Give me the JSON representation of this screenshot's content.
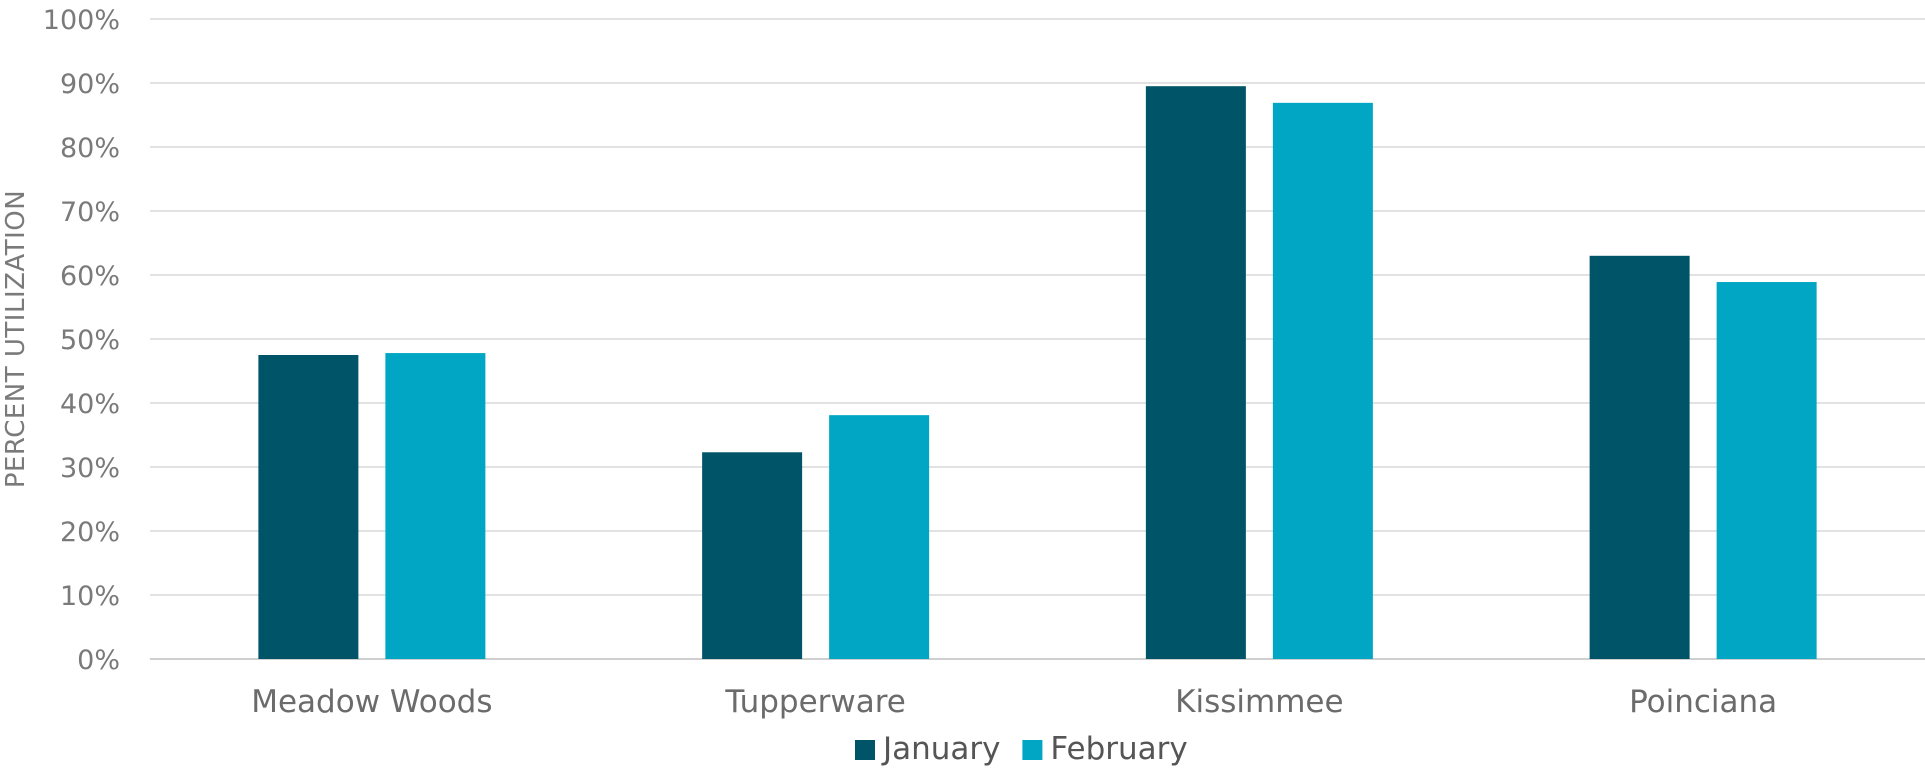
{
  "chart_data": {
    "type": "bar",
    "categories": [
      "Meadow Woods",
      "Tupperware",
      "Kissimmee",
      "Poinciana"
    ],
    "series": [
      {
        "name": "January",
        "color": "#005468",
        "values": [
          47.5,
          32.3,
          89.5,
          63.0
        ]
      },
      {
        "name": "February",
        "color": "#00a6c4",
        "values": [
          47.8,
          38.1,
          86.9,
          58.9
        ]
      }
    ],
    "ylabel": "PERCENT UTILIZATION",
    "ylim": [
      0,
      100
    ],
    "yticks": [
      "0%",
      "10%",
      "20%",
      "30%",
      "40%",
      "50%",
      "60%",
      "70%",
      "80%",
      "90%",
      "100%"
    ],
    "grid": true,
    "legend": "bottom-center"
  }
}
